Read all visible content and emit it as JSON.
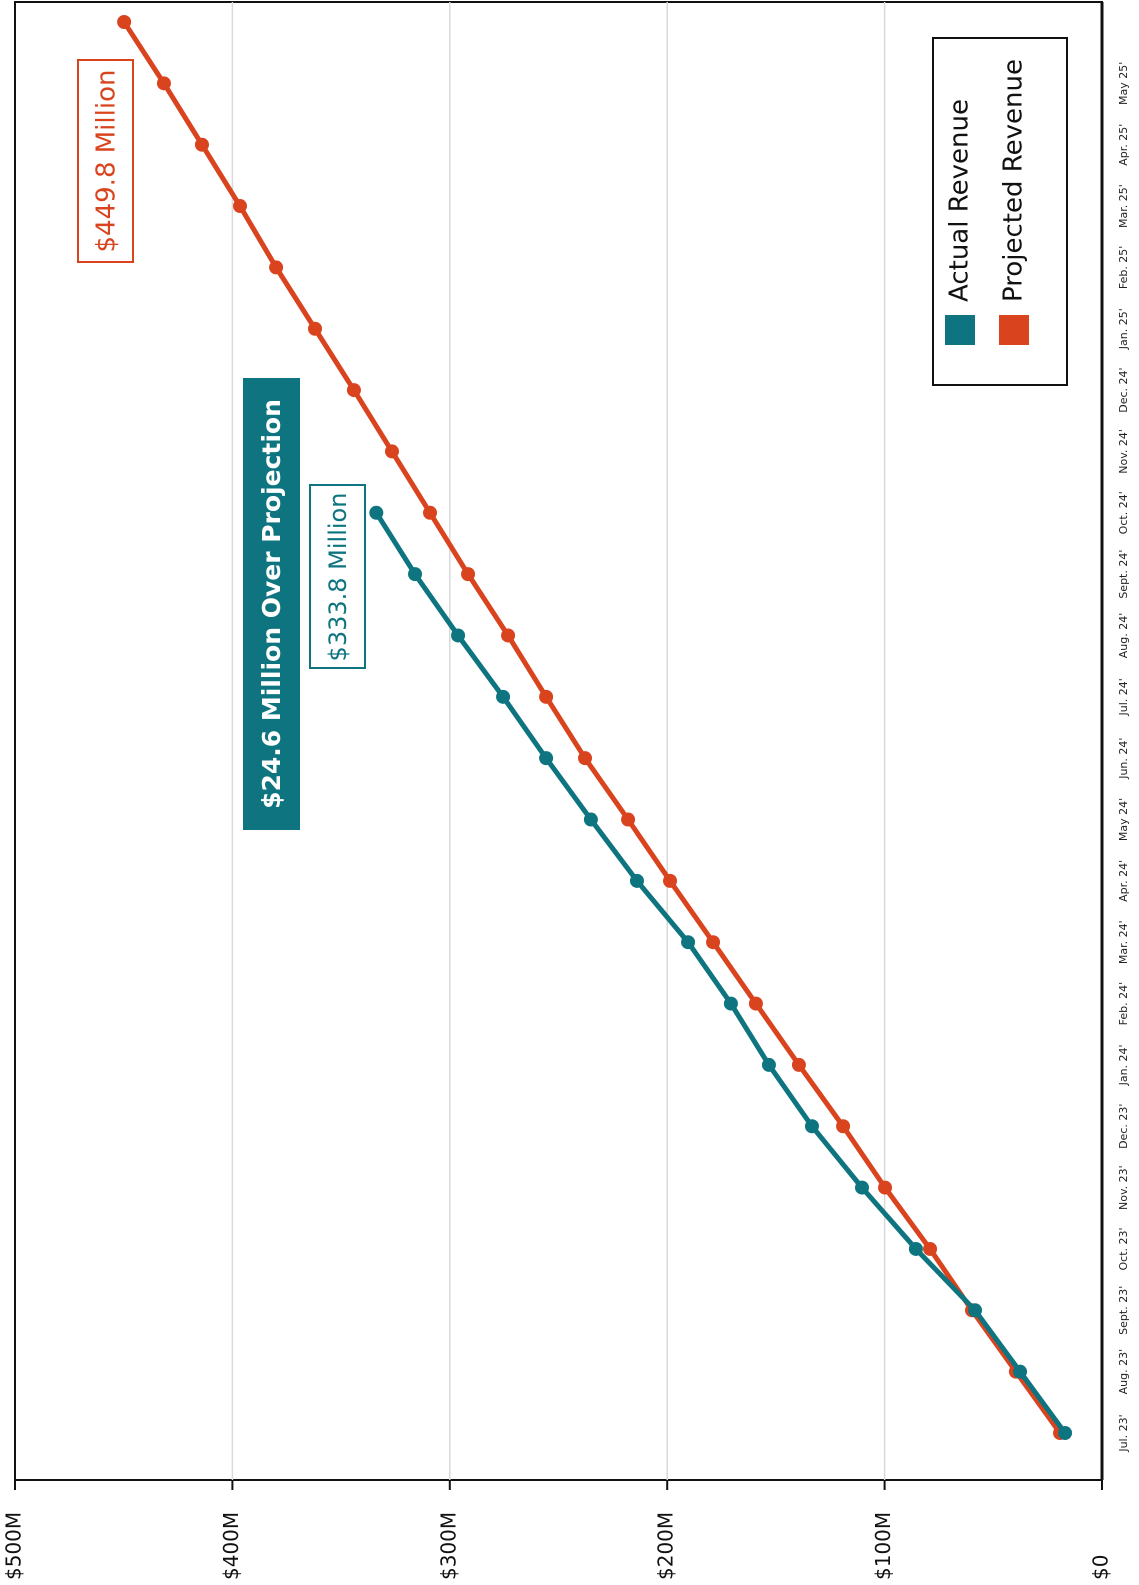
{
  "chart_data": {
    "type": "line",
    "categories": [
      "Jul. 23'",
      "Aug. 23'",
      "Sept. 23'",
      "Oct. 23'",
      "Nov. 23'",
      "Dec. 23'",
      "Jan. 24'",
      "Feb. 24'",
      "Mar. 24'",
      "Apr. 24'",
      "May 24'",
      "Jun. 24'",
      "Jul. 24'",
      "Aug. 24'",
      "Sept. 24'",
      "Oct. 24'",
      "Nov. 24'",
      "Dec. 24'",
      "Jan. 25'",
      "Feb. 25'",
      "Mar. 25'",
      "Apr. 25'",
      "May 25'",
      null
    ],
    "series": [
      {
        "name": "Actual Revenue",
        "color": "#0e7580",
        "values": [
          17.0,
          37.7,
          58.4,
          85.6,
          110.4,
          133.4,
          153.2,
          170.7,
          190.4,
          213.9,
          235.1,
          255.7,
          275.5,
          296.2,
          316.0,
          333.8,
          null,
          null,
          null,
          null,
          null,
          null,
          null,
          null
        ]
      },
      {
        "name": "Projected Revenue",
        "color": "#d9441f",
        "values": [
          19.3,
          39.6,
          59.8,
          79.1,
          99.8,
          119.1,
          139.4,
          159.2,
          178.9,
          198.7,
          218.0,
          237.8,
          255.7,
          273.2,
          291.6,
          309.1,
          326.6,
          344.1,
          362.0,
          379.9,
          396.5,
          414.0,
          431.5,
          449.8
        ]
      }
    ],
    "ylim": [
      0,
      500
    ],
    "yticks": [
      {
        "value": 0,
        "label": "$0"
      },
      {
        "value": 100,
        "label": "$100M"
      },
      {
        "value": 200,
        "label": "$200M"
      },
      {
        "value": 300,
        "label": "$300M"
      },
      {
        "value": 400,
        "label": "$400M"
      },
      {
        "value": 500,
        "label": "$500M"
      }
    ],
    "grid": true,
    "legend": "upper right",
    "annotations": [
      "$449.8 Million",
      "$333.8 Million",
      "$24.6 Million Over Projection"
    ]
  }
}
